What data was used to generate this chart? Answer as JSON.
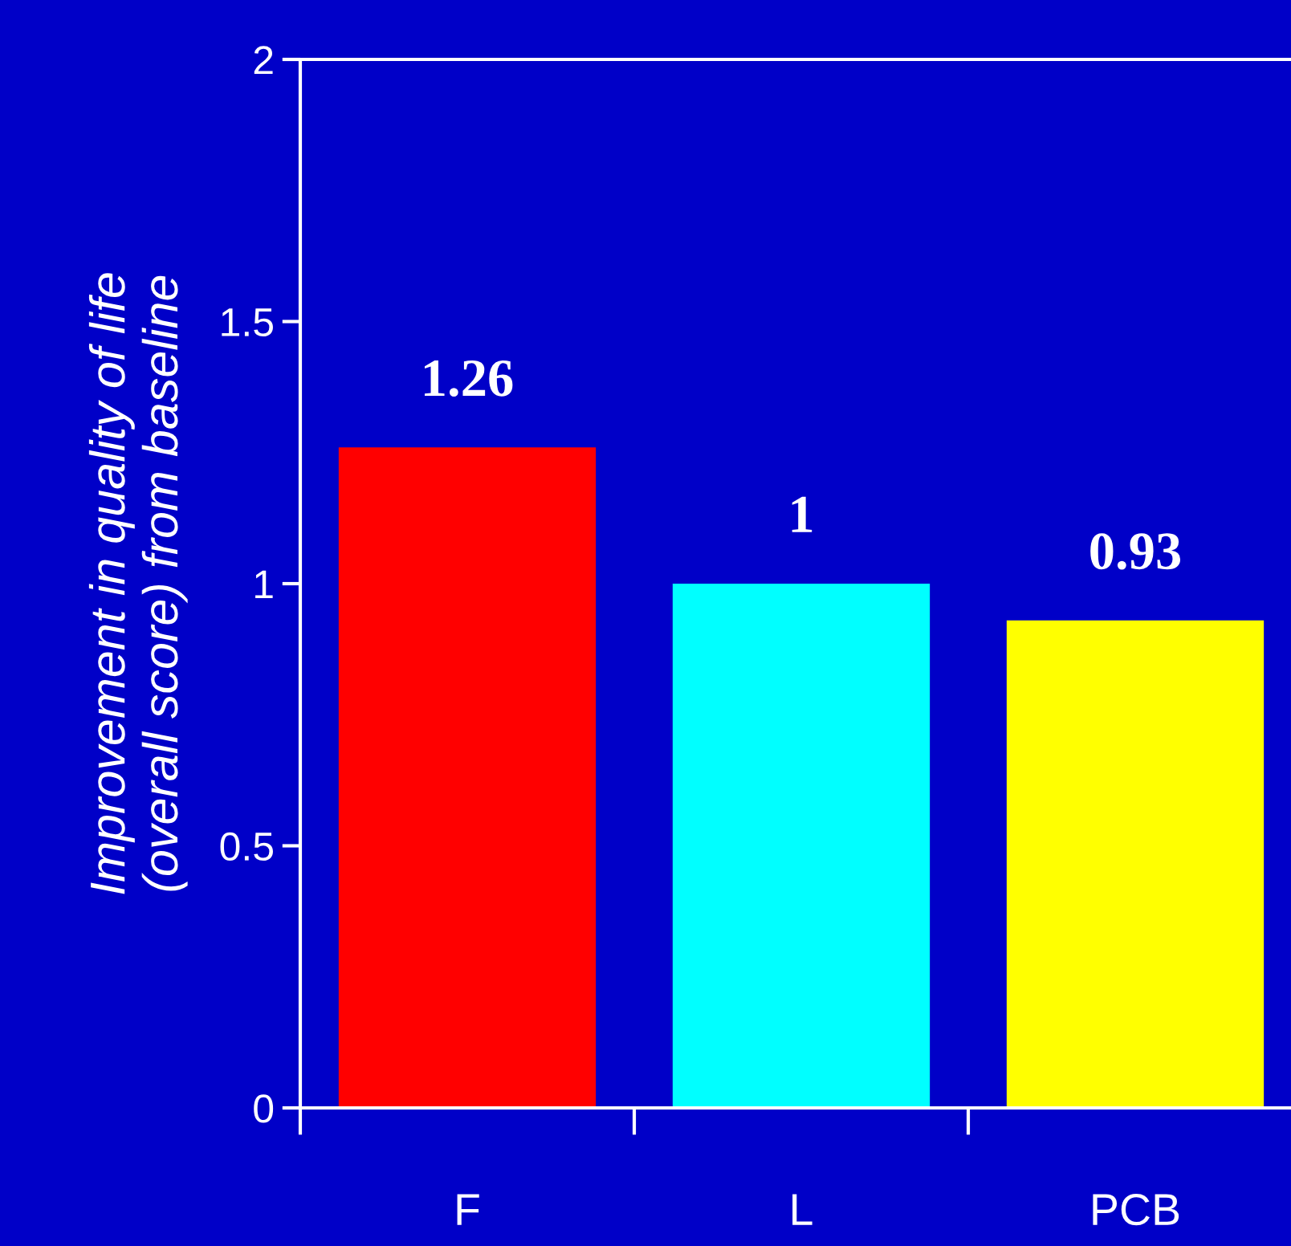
{
  "chart_data": {
    "type": "bar",
    "categories": [
      "F",
      "L",
      "PCB"
    ],
    "values": [
      1.26,
      1,
      0.93
    ],
    "colors": [
      "#ff0000",
      "#00ffff",
      "#ffff00"
    ],
    "ylabel": "Improvement in quality of life\n(overall score) from baseline",
    "ylim": [
      0,
      2
    ],
    "yticks": [
      0,
      0.5,
      1,
      1.5,
      2
    ],
    "data_labels": true,
    "grid": false,
    "legend": false
  }
}
